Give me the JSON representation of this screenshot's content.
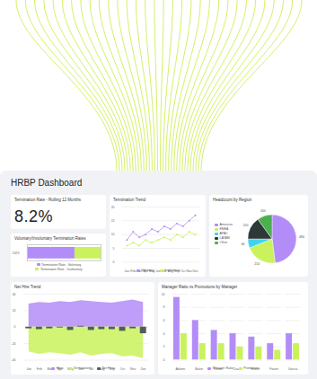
{
  "header": {
    "title": "HRBP Dashboard"
  },
  "kpi": {
    "title": "Termination Rate - Rolling 12 Months",
    "value": "8.2%"
  },
  "chart_data": [
    {
      "type": "bar",
      "title": "Voluntary/Involuntary Termination Rates",
      "orientation": "horizontal",
      "stacked": true,
      "categories": [
        "2023"
      ],
      "series": [
        {
          "name": "Termination Rate - Voluntary",
          "color": "#b38df7",
          "values": [
            5.3
          ]
        },
        {
          "name": "Termination Rate - Involuntary",
          "color": "#c9f25c",
          "values": [
            2.9
          ]
        }
      ],
      "xlim": [
        0,
        8.2
      ],
      "tick_labels": "y",
      "legend": "bottom"
    },
    {
      "type": "line",
      "title": "Termination Trend",
      "categories": [
        "Jan",
        "Feb",
        "Mar",
        "Apr",
        "May",
        "Jun",
        "Jul",
        "Aug",
        "Sep",
        "Oct",
        "Nov",
        "Dec"
      ],
      "series": [
        {
          "name": "Voluntary",
          "color": "#b38df7",
          "values": [
            8,
            11,
            9,
            10,
            12,
            11,
            13,
            12,
            14,
            13,
            15,
            17
          ]
        },
        {
          "name": "Involuntary",
          "color": "#c9f25c",
          "values": [
            6,
            7,
            6,
            8,
            7,
            8,
            9,
            8,
            10,
            9,
            11,
            10
          ]
        }
      ],
      "ylim": [
        0,
        20
      ],
      "yticks": [
        0,
        5,
        10,
        15,
        20
      ],
      "grid": true,
      "marker": "circle",
      "legend": "bottom"
    },
    {
      "type": "pie",
      "title": "Headcount by Region",
      "categories": [
        "Americas",
        "EMEA",
        "APAC",
        "LATAM",
        "Other"
      ],
      "values": [
        480,
        210,
        60,
        150,
        100
      ],
      "colors": [
        "#b38df7",
        "#c9f25c",
        "#3fd3ef",
        "#2e3838",
        "#4caf50"
      ],
      "data_labels": true,
      "legend": "left"
    },
    {
      "type": "bar",
      "title": "Net Hire Trend",
      "categories": [
        "Jan",
        "Feb",
        "Mar",
        "Apr",
        "May",
        "Jun",
        "Jul",
        "Aug",
        "Sep",
        "Oct",
        "Nov",
        "Dec"
      ],
      "series": [
        {
          "name": "Hires",
          "type": "area",
          "color": "#b38df7",
          "values": [
            28,
            30,
            29,
            31,
            30,
            32,
            31,
            30,
            29,
            31,
            33,
            30
          ]
        },
        {
          "name": "Terminations",
          "type": "area",
          "color": "#c9f25c",
          "values": [
            -30,
            -33,
            -31,
            -32,
            -34,
            -31,
            -35,
            -33,
            -32,
            -36,
            -35,
            -38
          ]
        },
        {
          "name": "Net Hires",
          "type": "bar",
          "color": "#555b5b",
          "values": [
            -2,
            -3,
            -2,
            -1,
            -4,
            1,
            -4,
            -3,
            -3,
            -5,
            -2,
            -8
          ]
        }
      ],
      "ylim": [
        -40,
        40
      ],
      "yticks": [
        -40,
        -20,
        0,
        20,
        40
      ],
      "grid": true,
      "legend": "bottom"
    },
    {
      "type": "bar",
      "title": "Manager Ratio vs Promotions by Manager",
      "categories": [
        "Adams",
        "Baker",
        "Chen",
        "Diaz",
        "Evans",
        "Foster",
        "Garcia"
      ],
      "series": [
        {
          "name": "Manager Ratio",
          "color": "#b38df7",
          "values": [
            9.5,
            6,
            4.5,
            4,
            3.5,
            2.5,
            4
          ]
        },
        {
          "name": "Promotions",
          "color": "#c9f25c",
          "values": [
            4,
            2.5,
            2.5,
            2,
            2,
            1.5,
            2.5
          ]
        }
      ],
      "ylim": [
        0,
        10
      ],
      "yticks": [
        0,
        2,
        4,
        6,
        8,
        10
      ],
      "grid": true,
      "legend": "bottom"
    }
  ]
}
